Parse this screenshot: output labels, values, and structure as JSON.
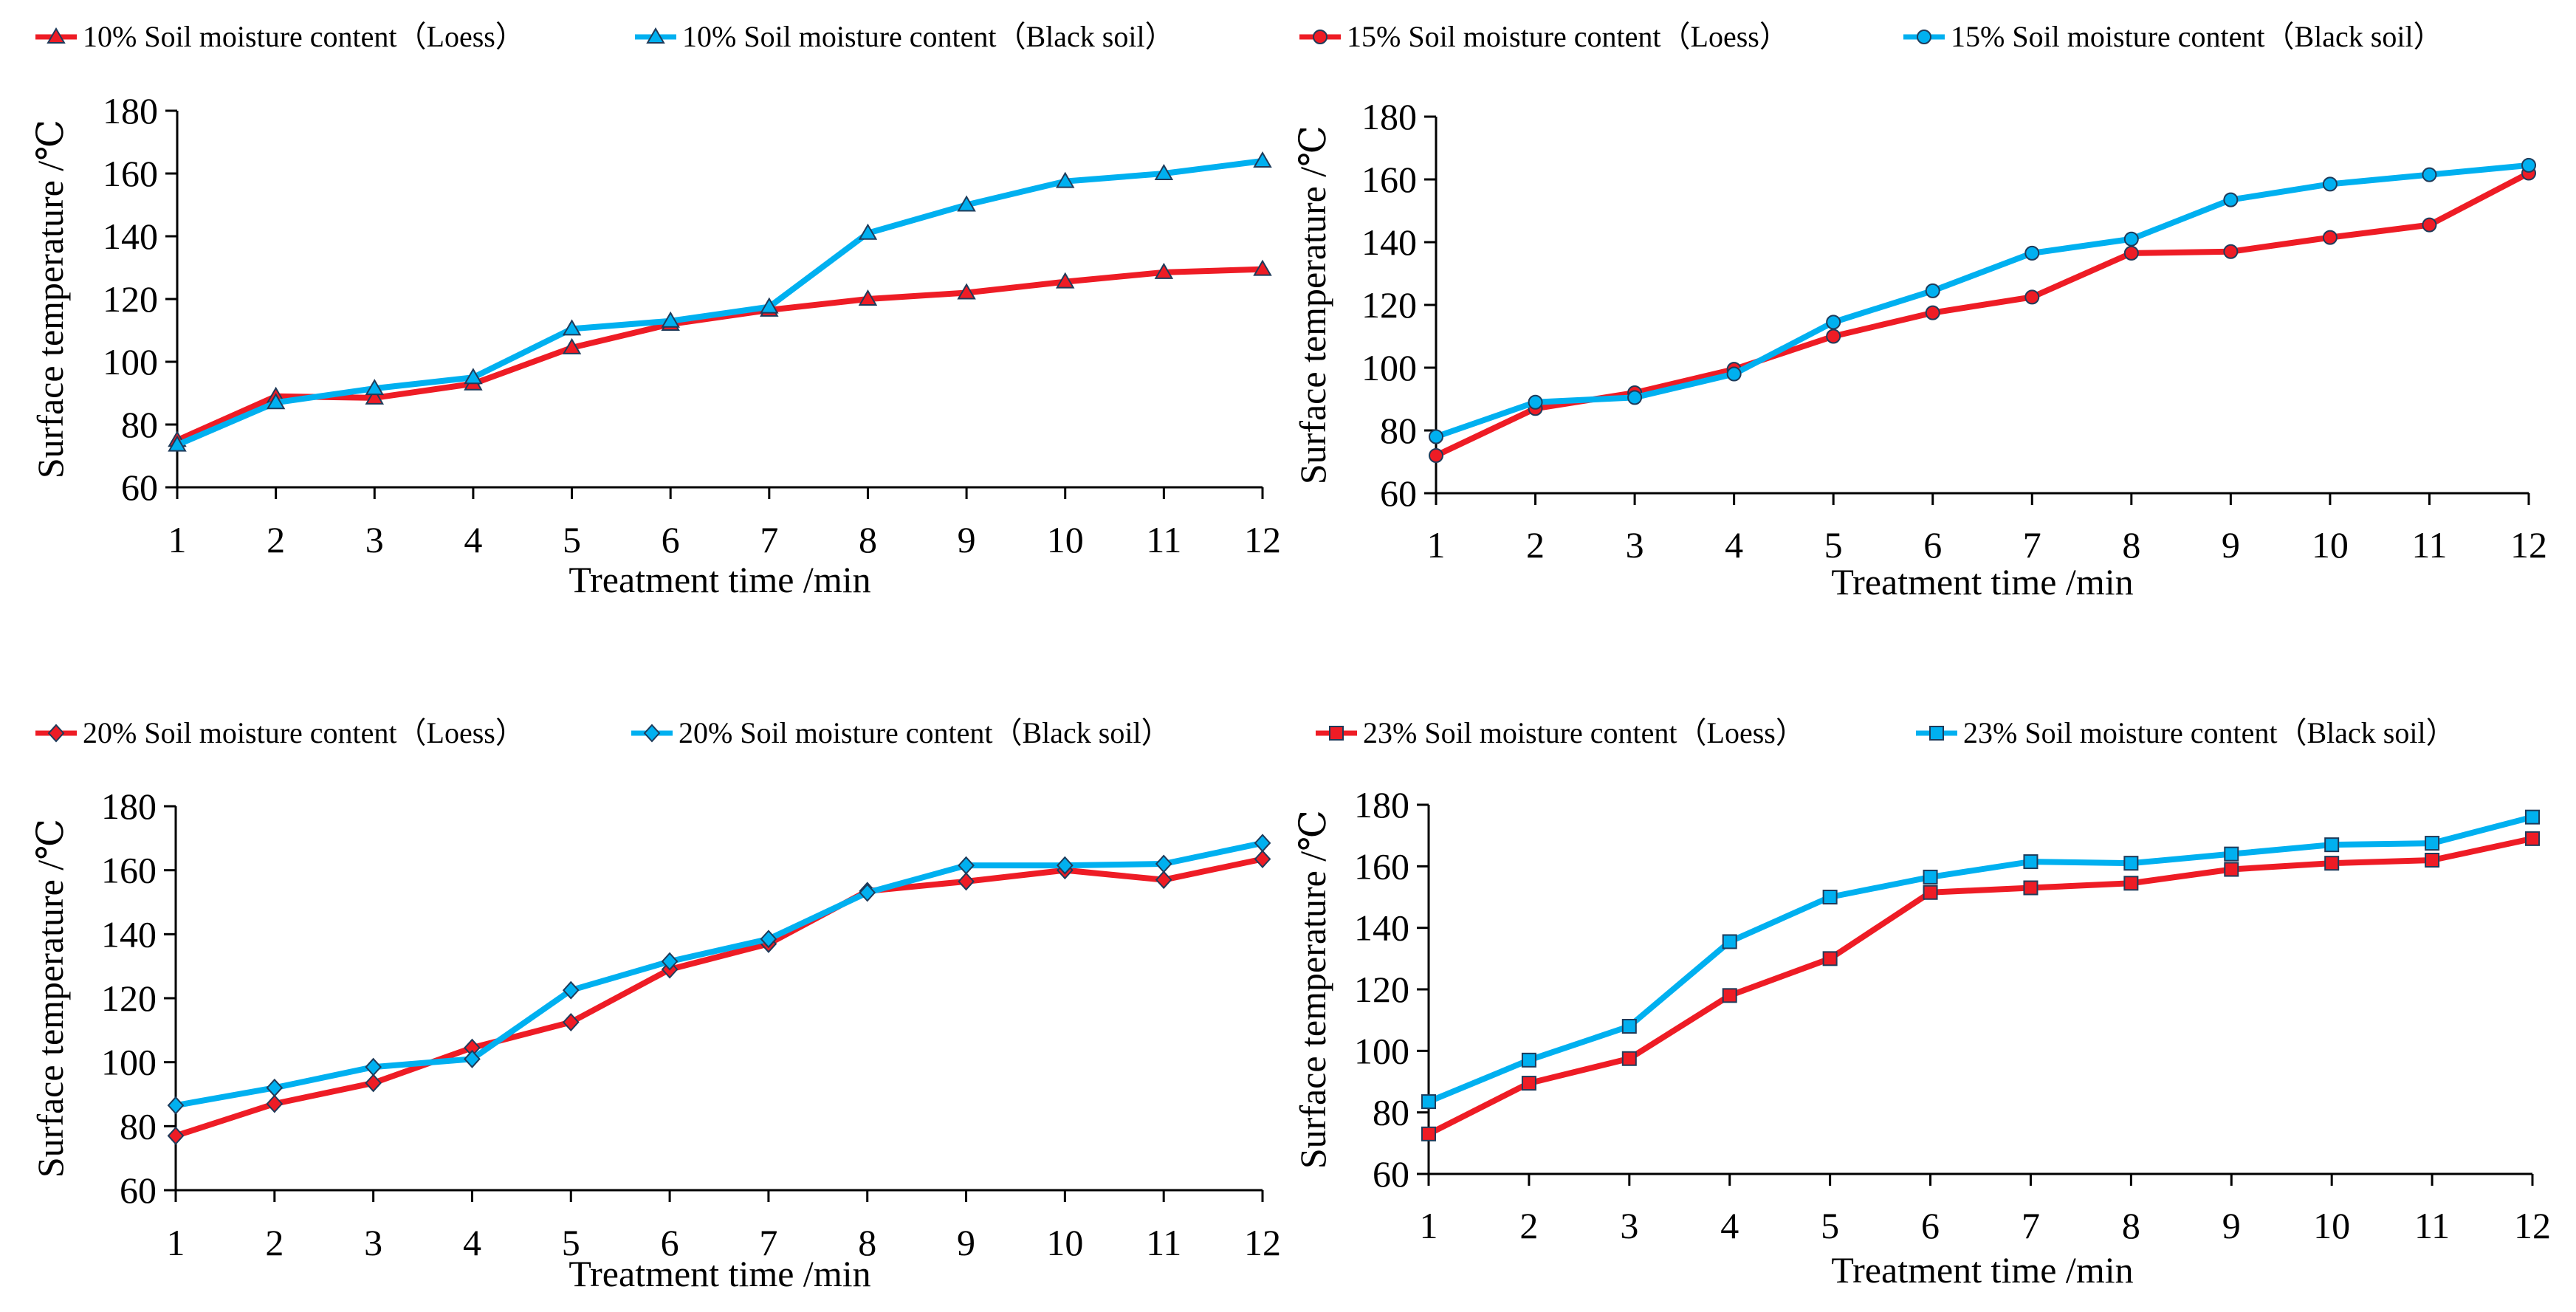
{
  "colors": {
    "loess": "#ee1c25",
    "black_soil": "#00b0f0",
    "axis": "#000000"
  },
  "chart_data": [
    {
      "type": "line",
      "panel": "top-left",
      "marker": "triangle",
      "x": [
        1,
        2,
        3,
        4,
        5,
        6,
        7,
        8,
        9,
        10,
        11,
        12
      ],
      "xlabel": "Treatment time /min",
      "ylabel": "Surface temperature /℃",
      "ylim": [
        60,
        180
      ],
      "yticks": [
        60,
        80,
        100,
        120,
        140,
        160,
        180
      ],
      "legend_position": "top",
      "series": [
        {
          "name": "10% Soil moisture content（Loess）",
          "color": "#ee1c25",
          "values": [
            75,
            89,
            88.5,
            93,
            104.5,
            112,
            116.5,
            120,
            122,
            125.5,
            128.5,
            129.5
          ]
        },
        {
          "name": "10% Soil moisture content（Black soil）",
          "color": "#00b0f0",
          "values": [
            73.5,
            87,
            91.5,
            95,
            110.5,
            113,
            117.5,
            141,
            150,
            157.5,
            160,
            164
          ]
        }
      ]
    },
    {
      "type": "line",
      "panel": "top-right",
      "marker": "circle",
      "x": [
        1,
        2,
        3,
        4,
        5,
        6,
        7,
        8,
        9,
        10,
        11,
        12
      ],
      "xlabel": "Treatment time /min",
      "ylabel": "Surface temperature /℃",
      "ylim": [
        60,
        180
      ],
      "yticks": [
        60,
        80,
        100,
        120,
        140,
        160,
        180
      ],
      "legend_position": "top",
      "series": [
        {
          "name": "15% Soil moisture content（Loess）",
          "color": "#ee1c25",
          "values": [
            72,
            87,
            92,
            99.5,
            110,
            117.5,
            122.5,
            136.5,
            137,
            141.5,
            145.5,
            162
          ]
        },
        {
          "name": "15% Soil moisture content（Black soil）",
          "color": "#00b0f0",
          "values": [
            78,
            89,
            90.5,
            98,
            114.5,
            124.5,
            136.5,
            141,
            153.5,
            158.5,
            161.5,
            164.5
          ]
        }
      ]
    },
    {
      "type": "line",
      "panel": "bottom-left",
      "marker": "diamond",
      "x": [
        1,
        2,
        3,
        4,
        5,
        6,
        7,
        8,
        9,
        10,
        11,
        12
      ],
      "xlabel": "Treatment time /min",
      "ylabel": "Surface temperature /℃",
      "ylim": [
        60,
        180
      ],
      "yticks": [
        60,
        80,
        100,
        120,
        140,
        160,
        180
      ],
      "legend_position": "top",
      "series": [
        {
          "name": "20% Soil moisture content（Loess）",
          "color": "#ee1c25",
          "values": [
            77,
            87,
            93.5,
            104.5,
            112.5,
            129,
            137,
            153.5,
            156.5,
            160,
            157,
            163.5
          ]
        },
        {
          "name": "20% Soil moisture content（Black soil）",
          "color": "#00b0f0",
          "values": [
            86.5,
            92,
            98.5,
            101,
            122.5,
            131.5,
            138.5,
            153,
            161.5,
            161.5,
            162,
            168.5
          ]
        }
      ]
    },
    {
      "type": "line",
      "panel": "bottom-right",
      "marker": "square",
      "x": [
        1,
        2,
        3,
        4,
        5,
        6,
        7,
        8,
        9,
        10,
        11,
        12
      ],
      "xlabel": "Treatment time /min",
      "ylabel": "Surface temperature /℃",
      "ylim": [
        60,
        180
      ],
      "yticks": [
        60,
        80,
        100,
        120,
        140,
        160,
        180
      ],
      "legend_position": "top",
      "series": [
        {
          "name": "23% Soil moisture content（Loess）",
          "color": "#ee1c25",
          "values": [
            73,
            89.5,
            97.5,
            118,
            130,
            151.5,
            153,
            154.5,
            159,
            161,
            162,
            169
          ]
        },
        {
          "name": "23% Soil moisture content（Black soil）",
          "color": "#00b0f0",
          "values": [
            83.5,
            97,
            108,
            135.5,
            150,
            156.5,
            161.5,
            161,
            164,
            167,
            167.5,
            176
          ]
        }
      ]
    }
  ]
}
